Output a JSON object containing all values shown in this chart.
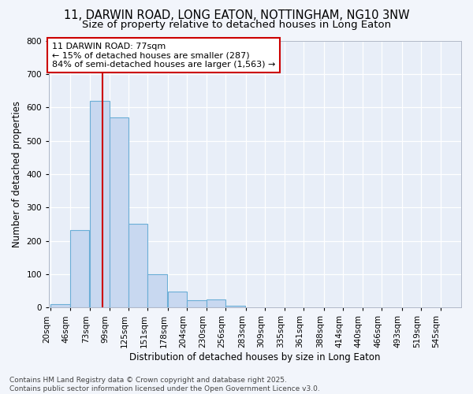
{
  "title_line1": "11, DARWIN ROAD, LONG EATON, NOTTINGHAM, NG10 3NW",
  "title_line2": "Size of property relative to detached houses in Long Eaton",
  "xlabel": "Distribution of detached houses by size in Long Eaton",
  "ylabel": "Number of detached properties",
  "bin_centers": [
    20,
    46,
    73,
    99,
    125,
    151,
    178,
    204,
    230,
    256,
    283,
    309,
    335,
    361,
    388,
    414,
    440,
    466,
    493,
    519,
    545
  ],
  "bin_width": 26,
  "bar_heights": [
    10,
    232,
    620,
    570,
    252,
    100,
    48,
    22,
    25,
    5,
    0,
    0,
    0,
    0,
    0,
    0,
    0,
    0,
    0,
    0,
    0
  ],
  "bin_labels": [
    "20sqm",
    "46sqm",
    "73sqm",
    "99sqm",
    "125sqm",
    "151sqm",
    "178sqm",
    "204sqm",
    "230sqm",
    "256sqm",
    "283sqm",
    "309sqm",
    "335sqm",
    "361sqm",
    "388sqm",
    "414sqm",
    "440sqm",
    "466sqm",
    "493sqm",
    "519sqm",
    "545sqm"
  ],
  "bar_color": "#c8d8f0",
  "bar_edge_color": "#6baed6",
  "property_sqm": 77,
  "property_line_color": "#cc0000",
  "annotation_text": "11 DARWIN ROAD: 77sqm\n← 15% of detached houses are smaller (287)\n84% of semi-detached houses are larger (1,563) →",
  "annotation_box_facecolor": "#ffffff",
  "annotation_box_edgecolor": "#cc0000",
  "ylim": [
    0,
    800
  ],
  "yticks": [
    0,
    100,
    200,
    300,
    400,
    500,
    600,
    700,
    800
  ],
  "plot_bg_color": "#e8eef8",
  "fig_bg_color": "#f2f5fb",
  "grid_color": "#ffffff",
  "footer_line1": "Contains HM Land Registry data © Crown copyright and database right 2025.",
  "footer_line2": "Contains public sector information licensed under the Open Government Licence v3.0.",
  "title_fontsize": 10.5,
  "subtitle_fontsize": 9.5,
  "axis_label_fontsize": 8.5,
  "tick_fontsize": 7.5,
  "annotation_fontsize": 8,
  "footer_fontsize": 6.5
}
